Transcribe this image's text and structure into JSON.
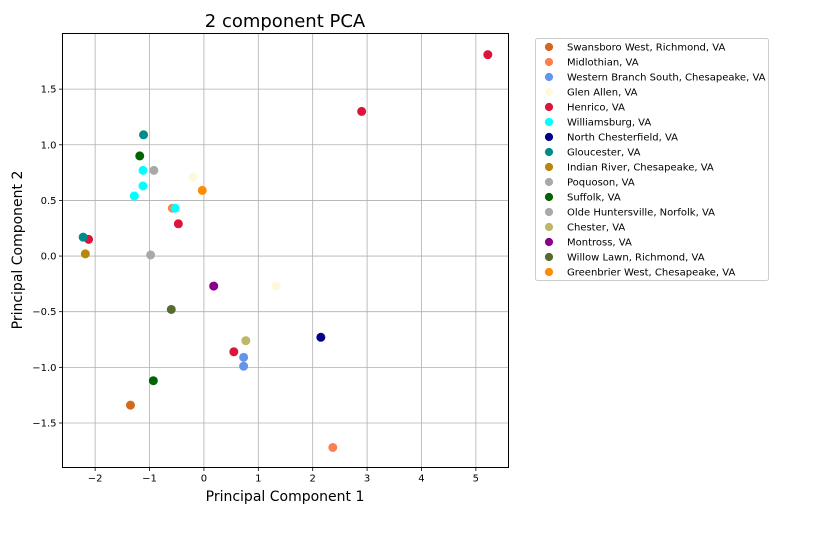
{
  "chart_data": {
    "type": "scatter",
    "title": "2 component PCA",
    "xlabel": "Principal Component 1",
    "ylabel": "Principal Component 2",
    "xlim": [
      -2.6,
      5.6
    ],
    "ylim": [
      -1.9,
      2.0
    ],
    "xticks": [
      -2,
      -1,
      0,
      1,
      2,
      3,
      4,
      5
    ],
    "yticks": [
      -1.5,
      -1.0,
      -0.5,
      0.0,
      0.5,
      1.0,
      1.5
    ],
    "xtick_labels": [
      "−2",
      "−1",
      "0",
      "1",
      "2",
      "3",
      "4",
      "5"
    ],
    "ytick_labels": [
      "−1.5",
      "−1.0",
      "−0.5",
      "0.0",
      "0.5",
      "1.0",
      "1.5"
    ],
    "grid": true,
    "legend_position": "outside-right-top",
    "series": [
      {
        "name": "Swansboro West, Richmond, VA",
        "color": "#d2691e",
        "points": [
          [
            -1.35,
            -1.34
          ]
        ]
      },
      {
        "name": "Midlothian, VA",
        "color": "#ff7f50",
        "points": [
          [
            -0.58,
            0.43
          ],
          [
            2.37,
            -1.72
          ]
        ]
      },
      {
        "name": "Western Branch South, Chesapeake, VA",
        "color": "#6495ed",
        "points": [
          [
            0.73,
            -0.91
          ],
          [
            0.73,
            -0.99
          ]
        ]
      },
      {
        "name": "Glen Allen, VA",
        "color": "#fff8dc",
        "points": [
          [
            -0.2,
            0.71
          ],
          [
            1.33,
            -0.27
          ]
        ]
      },
      {
        "name": "Henrico, VA",
        "color": "#dc143c",
        "points": [
          [
            -2.12,
            0.15
          ],
          [
            -0.47,
            0.29
          ],
          [
            0.55,
            -0.86
          ],
          [
            2.9,
            1.3
          ],
          [
            5.22,
            1.81
          ]
        ]
      },
      {
        "name": "Williamsburg, VA",
        "color": "#00ffff",
        "points": [
          [
            -1.28,
            0.54
          ],
          [
            -1.12,
            0.63
          ],
          [
            -1.12,
            0.77
          ],
          [
            -0.53,
            0.43
          ]
        ]
      },
      {
        "name": "North Chesterfield, VA",
        "color": "#00008b",
        "points": [
          [
            2.15,
            -0.73
          ]
        ]
      },
      {
        "name": "Gloucester, VA",
        "color": "#008b8b",
        "points": [
          [
            -2.22,
            0.17
          ],
          [
            -1.11,
            1.09
          ]
        ]
      },
      {
        "name": "Indian River, Chesapeake, VA",
        "color": "#b8860b",
        "points": [
          [
            -2.18,
            0.02
          ]
        ]
      },
      {
        "name": "Poquoson, VA",
        "color": "#a9a9a9",
        "points": [
          [
            -0.98,
            0.01
          ]
        ]
      },
      {
        "name": "Suffolk, VA",
        "color": "#006400",
        "points": [
          [
            -1.18,
            0.9
          ],
          [
            -0.93,
            -1.12
          ]
        ]
      },
      {
        "name": "Olde Huntersville, Norfolk, VA",
        "color": "#a9a9a9",
        "points": [
          [
            -0.92,
            0.77
          ]
        ]
      },
      {
        "name": "Chester, VA",
        "color": "#bdb76b",
        "points": [
          [
            0.77,
            -0.76
          ]
        ]
      },
      {
        "name": "Montross, VA",
        "color": "#8b008b",
        "points": [
          [
            0.18,
            -0.27
          ]
        ]
      },
      {
        "name": "Willow Lawn, Richmond, VA",
        "color": "#556b2f",
        "points": [
          [
            -0.6,
            -0.48
          ]
        ]
      },
      {
        "name": "Greenbrier West, Chesapeake, VA",
        "color": "#ff8c00",
        "points": [
          [
            -0.03,
            0.59
          ]
        ]
      }
    ]
  }
}
